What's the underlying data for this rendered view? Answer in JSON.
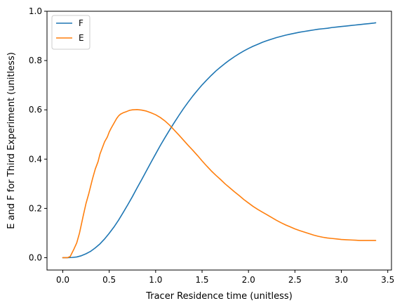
{
  "chart_data": {
    "type": "line",
    "title": "",
    "xlabel": "Tracer Residence time (unitless)",
    "ylabel": "E and F for Third Experiment (unitless)",
    "xlim": [
      -0.17,
      3.54
    ],
    "ylim": [
      -0.05,
      1.0
    ],
    "xticks": [
      0.0,
      0.5,
      1.0,
      1.5,
      2.0,
      2.5,
      3.0,
      3.5
    ],
    "xtick_labels": [
      "0.0",
      "0.5",
      "1.0",
      "1.5",
      "2.0",
      "2.5",
      "3.0",
      "3.5"
    ],
    "yticks": [
      0.0,
      0.2,
      0.4,
      0.6,
      0.8,
      1.0
    ],
    "ytick_labels": [
      "0.0",
      "0.2",
      "0.4",
      "0.6",
      "0.8",
      "1.0"
    ],
    "grid": false,
    "legend_position": "top-left",
    "series": [
      {
        "name": "F",
        "color": "#1f77b4",
        "x": [
          0.0,
          0.05,
          0.1,
          0.15,
          0.2,
          0.25,
          0.3,
          0.35,
          0.4,
          0.45,
          0.5,
          0.55,
          0.6,
          0.65,
          0.7,
          0.75,
          0.8,
          0.85,
          0.9,
          0.95,
          1.0,
          1.05,
          1.1,
          1.15,
          1.2,
          1.25,
          1.3,
          1.35,
          1.4,
          1.45,
          1.5,
          1.55,
          1.6,
          1.65,
          1.7,
          1.75,
          1.8,
          1.85,
          1.9,
          1.95,
          2.0,
          2.05,
          2.1,
          2.15,
          2.2,
          2.25,
          2.3,
          2.35,
          2.4,
          2.45,
          2.5,
          2.55,
          2.6,
          2.65,
          2.7,
          2.75,
          2.8,
          2.85,
          2.9,
          2.95,
          3.0,
          3.05,
          3.1,
          3.15,
          3.2,
          3.25,
          3.3,
          3.35,
          3.37
        ],
        "y": [
          0.0,
          0.0,
          0.001,
          0.003,
          0.008,
          0.016,
          0.026,
          0.04,
          0.056,
          0.076,
          0.099,
          0.124,
          0.152,
          0.183,
          0.215,
          0.248,
          0.283,
          0.317,
          0.352,
          0.387,
          0.421,
          0.455,
          0.487,
          0.518,
          0.548,
          0.577,
          0.605,
          0.631,
          0.656,
          0.679,
          0.701,
          0.721,
          0.74,
          0.758,
          0.774,
          0.789,
          0.803,
          0.816,
          0.828,
          0.839,
          0.849,
          0.858,
          0.866,
          0.874,
          0.881,
          0.887,
          0.893,
          0.898,
          0.903,
          0.907,
          0.911,
          0.915,
          0.918,
          0.921,
          0.924,
          0.927,
          0.929,
          0.931,
          0.934,
          0.936,
          0.938,
          0.94,
          0.942,
          0.944,
          0.946,
          0.948,
          0.95,
          0.952,
          0.953
        ]
      },
      {
        "name": "E",
        "color": "#ff7f0e",
        "x": [
          0.0,
          0.05,
          0.08,
          0.1,
          0.12,
          0.15,
          0.18,
          0.2,
          0.22,
          0.25,
          0.28,
          0.3,
          0.32,
          0.35,
          0.38,
          0.4,
          0.42,
          0.45,
          0.48,
          0.5,
          0.52,
          0.55,
          0.58,
          0.6,
          0.62,
          0.65,
          0.68,
          0.7,
          0.72,
          0.75,
          0.8,
          0.85,
          0.9,
          0.95,
          1.0,
          1.05,
          1.1,
          1.15,
          1.2,
          1.25,
          1.3,
          1.35,
          1.4,
          1.45,
          1.5,
          1.55,
          1.6,
          1.65,
          1.7,
          1.75,
          1.8,
          1.85,
          1.9,
          1.95,
          2.0,
          2.05,
          2.1,
          2.15,
          2.2,
          2.25,
          2.3,
          2.35,
          2.4,
          2.45,
          2.5,
          2.55,
          2.6,
          2.65,
          2.7,
          2.75,
          2.8,
          2.85,
          2.9,
          2.95,
          3.0,
          3.05,
          3.1,
          3.15,
          3.2,
          3.25,
          3.3,
          3.37
        ],
        "y": [
          0.0,
          0.0,
          0.005,
          0.02,
          0.035,
          0.06,
          0.1,
          0.135,
          0.17,
          0.22,
          0.26,
          0.29,
          0.32,
          0.36,
          0.39,
          0.42,
          0.44,
          0.47,
          0.49,
          0.51,
          0.525,
          0.545,
          0.565,
          0.575,
          0.582,
          0.588,
          0.592,
          0.595,
          0.598,
          0.6,
          0.601,
          0.599,
          0.595,
          0.588,
          0.58,
          0.569,
          0.555,
          0.538,
          0.518,
          0.498,
          0.477,
          0.456,
          0.436,
          0.415,
          0.393,
          0.372,
          0.352,
          0.334,
          0.317,
          0.299,
          0.283,
          0.267,
          0.252,
          0.236,
          0.222,
          0.208,
          0.196,
          0.185,
          0.174,
          0.163,
          0.152,
          0.142,
          0.133,
          0.125,
          0.117,
          0.11,
          0.104,
          0.098,
          0.092,
          0.087,
          0.083,
          0.08,
          0.078,
          0.076,
          0.074,
          0.073,
          0.072,
          0.071,
          0.07,
          0.07,
          0.07,
          0.07
        ]
      }
    ]
  }
}
